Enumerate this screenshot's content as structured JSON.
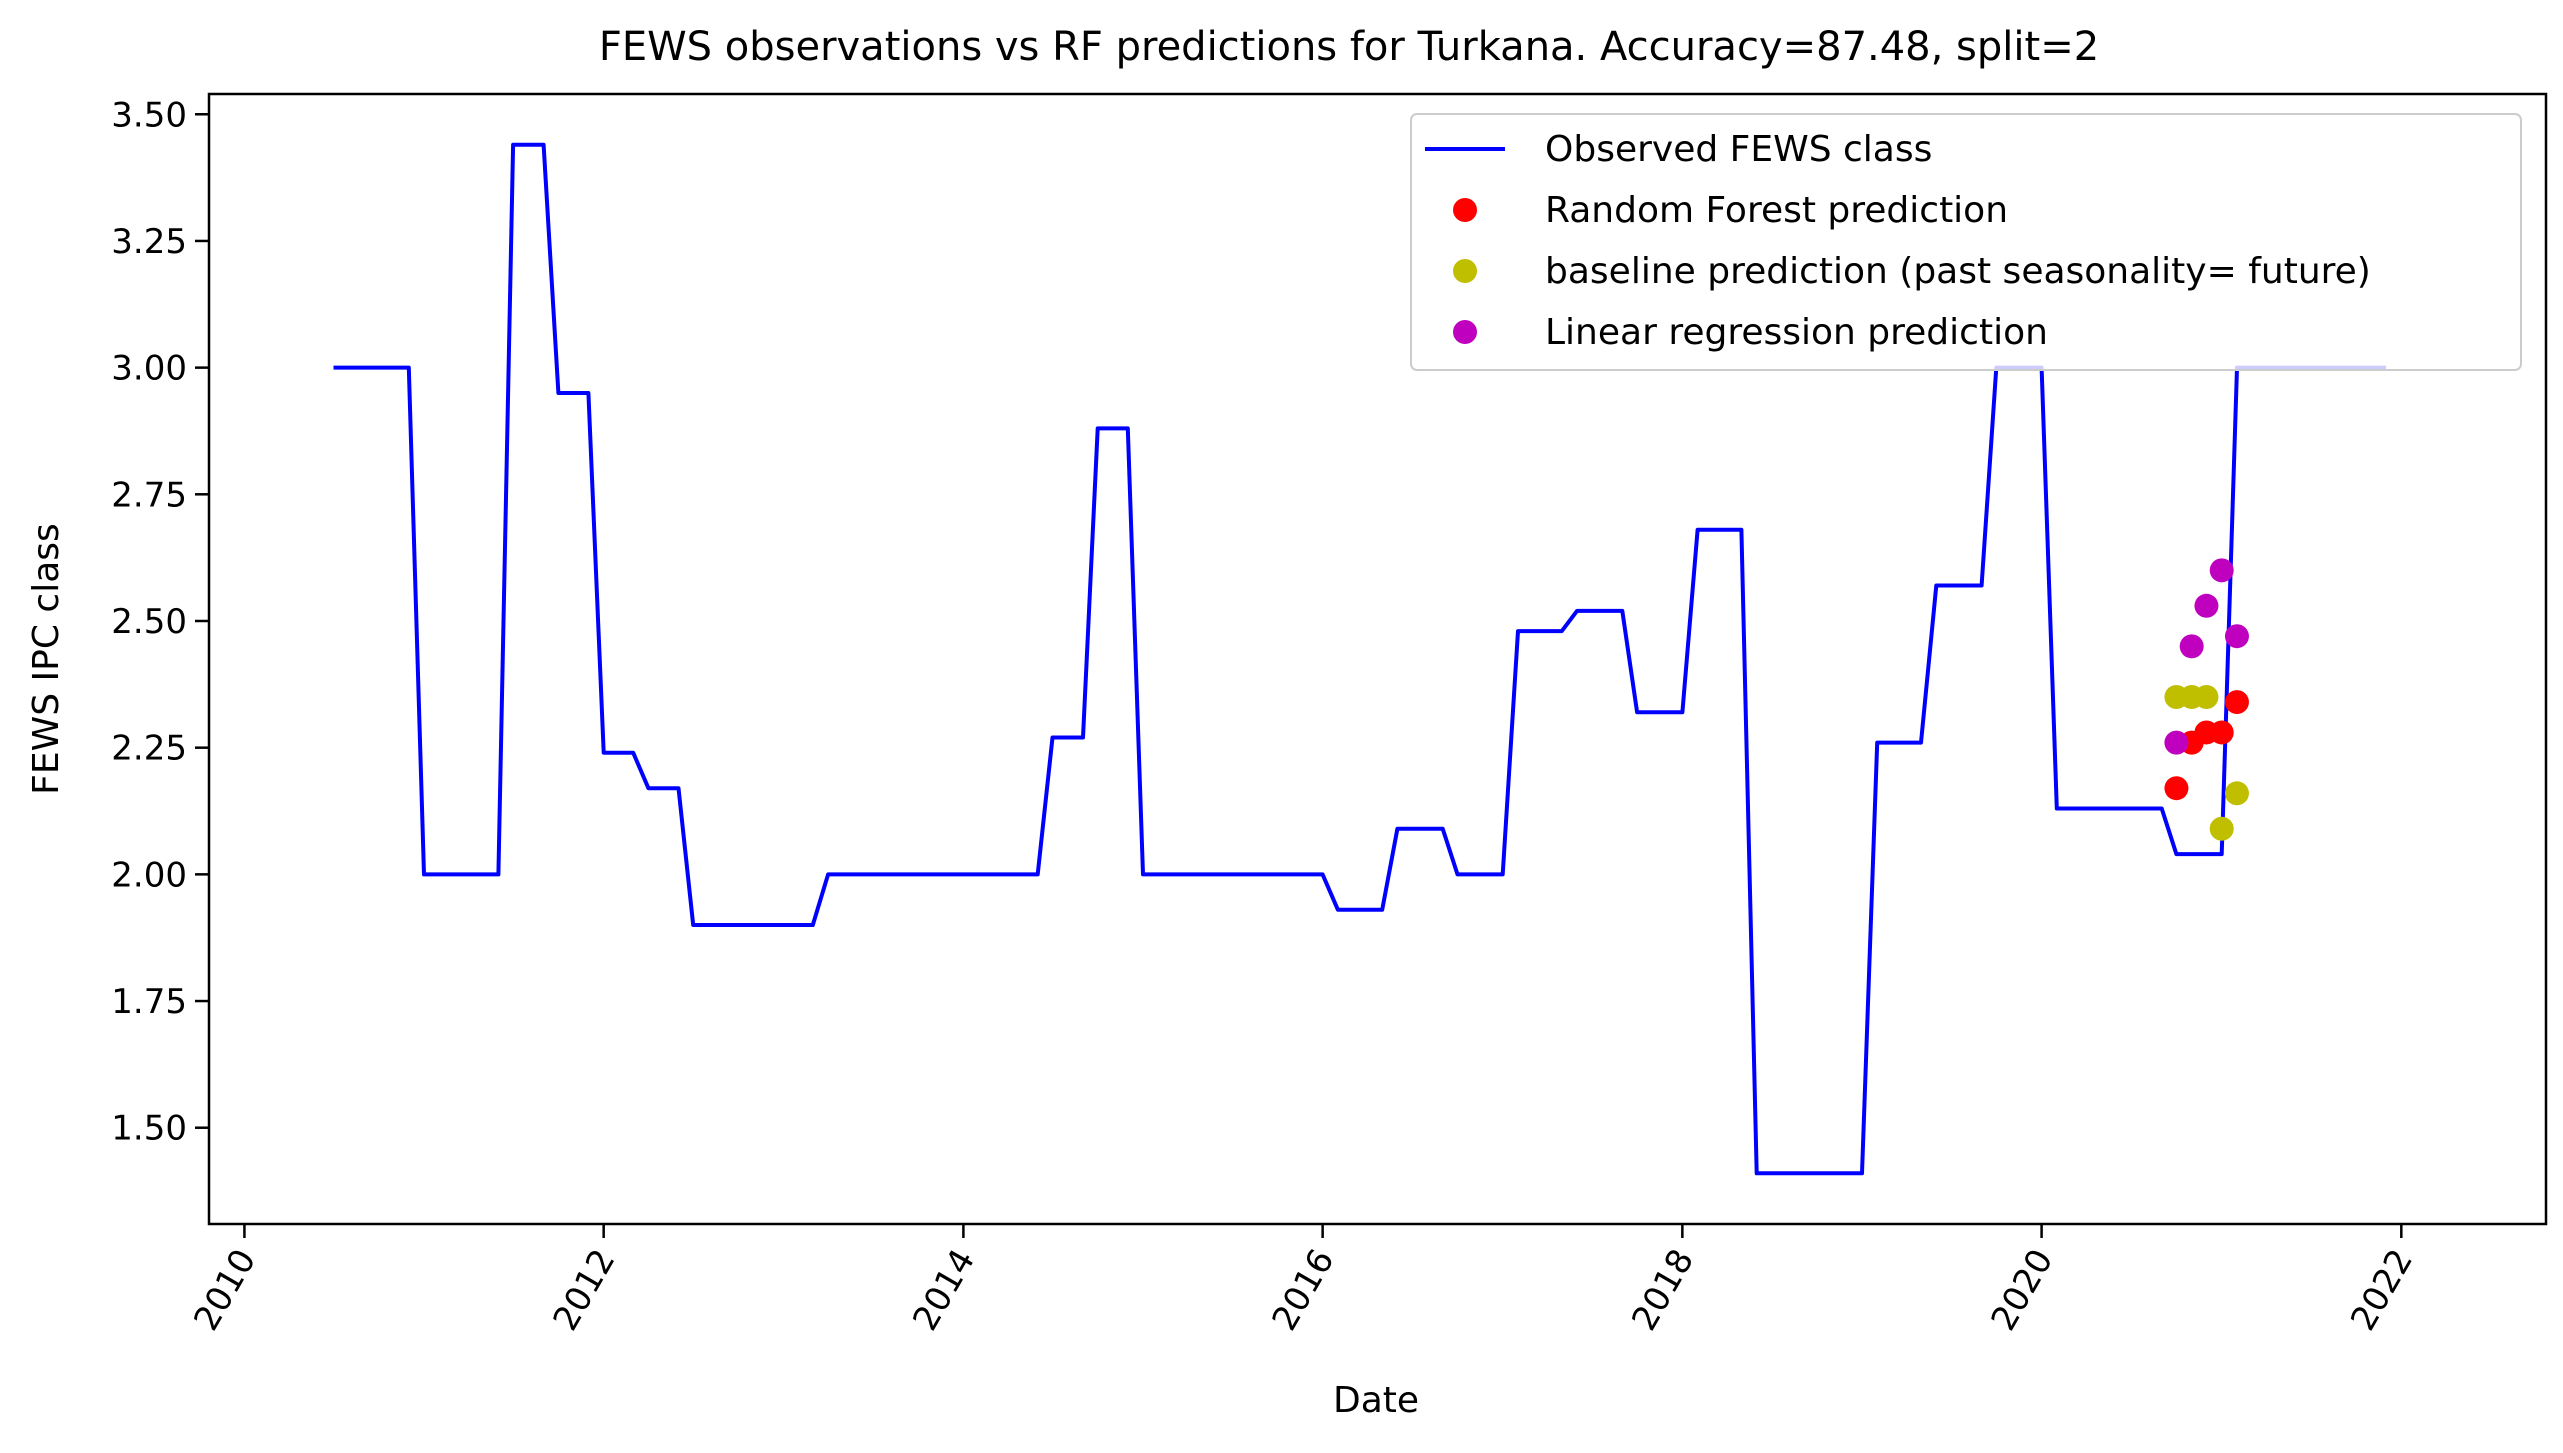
{
  "chart_data": {
    "type": "line",
    "title": "FEWS observations vs RF predictions for Turkana. Accuracy=87.48, split=2",
    "xlabel": "Date",
    "ylabel": "FEWS IPC class",
    "xlim": [
      "2009-10-21",
      "2022-10-22"
    ],
    "ylim": [
      1.31,
      3.54
    ],
    "x_ticks": [
      {
        "value": "2010-01-01",
        "label": "2010"
      },
      {
        "value": "2012-01-01",
        "label": "2012"
      },
      {
        "value": "2014-01-01",
        "label": "2014"
      },
      {
        "value": "2016-01-01",
        "label": "2016"
      },
      {
        "value": "2018-01-01",
        "label": "2018"
      },
      {
        "value": "2020-01-01",
        "label": "2020"
      },
      {
        "value": "2022-01-01",
        "label": "2022"
      }
    ],
    "y_ticks": [
      {
        "value": 1.5,
        "label": "1.50"
      },
      {
        "value": 1.75,
        "label": "1.75"
      },
      {
        "value": 2.0,
        "label": "2.00"
      },
      {
        "value": 2.25,
        "label": "2.25"
      },
      {
        "value": 2.5,
        "label": "2.50"
      },
      {
        "value": 2.75,
        "label": "2.75"
      },
      {
        "value": 3.0,
        "label": "3.00"
      },
      {
        "value": 3.25,
        "label": "3.25"
      },
      {
        "value": 3.5,
        "label": "3.50"
      }
    ],
    "grid": false,
    "legend_position": "top-right",
    "series": [
      {
        "name": "Observed FEWS class",
        "kind": "line",
        "color": "#0000ff",
        "points": [
          [
            "2010-07-01",
            3.0
          ],
          [
            "2010-12-01",
            3.0
          ],
          [
            "2011-01-01",
            2.0
          ],
          [
            "2011-06-01",
            2.0
          ],
          [
            "2011-07-01",
            3.44
          ],
          [
            "2011-09-01",
            3.44
          ],
          [
            "2011-10-01",
            2.95
          ],
          [
            "2011-12-01",
            2.95
          ],
          [
            "2012-01-01",
            2.24
          ],
          [
            "2012-03-01",
            2.24
          ],
          [
            "2012-04-01",
            2.17
          ],
          [
            "2012-06-01",
            2.17
          ],
          [
            "2012-07-01",
            1.9
          ],
          [
            "2013-03-01",
            1.9
          ],
          [
            "2013-04-01",
            2.0
          ],
          [
            "2014-06-01",
            2.0
          ],
          [
            "2014-07-01",
            2.27
          ],
          [
            "2014-09-01",
            2.27
          ],
          [
            "2014-10-01",
            2.88
          ],
          [
            "2014-12-01",
            2.88
          ],
          [
            "2015-01-01",
            2.0
          ],
          [
            "2016-01-01",
            2.0
          ],
          [
            "2016-02-01",
            1.93
          ],
          [
            "2016-05-01",
            1.93
          ],
          [
            "2016-06-01",
            2.09
          ],
          [
            "2016-09-01",
            2.09
          ],
          [
            "2016-10-01",
            2.0
          ],
          [
            "2017-01-01",
            2.0
          ],
          [
            "2017-02-01",
            2.48
          ],
          [
            "2017-05-01",
            2.48
          ],
          [
            "2017-06-01",
            2.52
          ],
          [
            "2017-09-01",
            2.52
          ],
          [
            "2017-10-01",
            2.32
          ],
          [
            "2018-01-01",
            2.32
          ],
          [
            "2018-02-01",
            2.68
          ],
          [
            "2018-05-01",
            2.68
          ],
          [
            "2018-06-01",
            1.41
          ],
          [
            "2019-01-01",
            1.41
          ],
          [
            "2019-02-01",
            2.26
          ],
          [
            "2019-05-01",
            2.26
          ],
          [
            "2019-06-01",
            2.57
          ],
          [
            "2019-09-01",
            2.57
          ],
          [
            "2019-10-01",
            3.0
          ],
          [
            "2020-01-01",
            3.0
          ],
          [
            "2020-02-01",
            2.13
          ],
          [
            "2020-09-01",
            2.13
          ],
          [
            "2020-10-01",
            2.04
          ],
          [
            "2021-01-01",
            2.04
          ],
          [
            "2021-02-01",
            3.0
          ],
          [
            "2021-12-01",
            3.0
          ]
        ]
      },
      {
        "name": "Random Forest prediction",
        "kind": "scatter",
        "color": "#ff0000",
        "points": [
          [
            "2020-10-01",
            2.17
          ],
          [
            "2020-11-01",
            2.26
          ],
          [
            "2020-12-01",
            2.28
          ],
          [
            "2021-01-01",
            2.28
          ],
          [
            "2021-02-01",
            2.34
          ]
        ]
      },
      {
        "name": "baseline prediction (past seasonality= future)",
        "kind": "scatter",
        "color": "#bfbf00",
        "points": [
          [
            "2020-10-01",
            2.35
          ],
          [
            "2020-11-01",
            2.35
          ],
          [
            "2020-12-01",
            2.35
          ],
          [
            "2021-01-01",
            2.09
          ],
          [
            "2021-02-01",
            2.16
          ]
        ]
      },
      {
        "name": "Linear regression prediction",
        "kind": "scatter",
        "color": "#bf00bf",
        "points": [
          [
            "2020-10-01",
            2.26
          ],
          [
            "2020-11-01",
            2.45
          ],
          [
            "2020-12-01",
            2.53
          ],
          [
            "2021-01-01",
            2.6
          ],
          [
            "2021-02-01",
            2.47
          ]
        ]
      }
    ]
  }
}
